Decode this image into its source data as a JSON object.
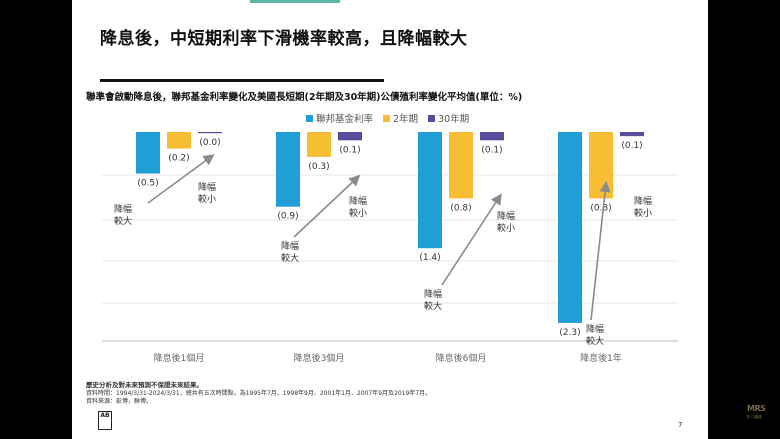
{
  "slide_title": "降息後，中短期利率下滑機率較高，且降幅較大",
  "chart_data": {
    "type": "bar",
    "title": "聯準會啟動降息後，聯邦基金利率變化及美國長短期(2年期及30年期)公債殖利率變化平均值(單位：%)",
    "categories": [
      "降息後1個月",
      "降息後3個月",
      "降息後6個月",
      "降息後1年"
    ],
    "series": [
      {
        "name": "聯邦基金利率",
        "color": "#1f9fd6",
        "values": [
          -0.5,
          -0.9,
          -1.4,
          -2.3
        ],
        "labels": [
          "(0.5)",
          "(0.9)",
          "(1.4)",
          "(2.3)"
        ]
      },
      {
        "name": "2年期",
        "color": "#f7bd33",
        "values": [
          -0.2,
          -0.3,
          -0.8,
          -0.8
        ],
        "labels": [
          "(0.2)",
          "(0.3)",
          "(0.8)",
          "(0.8)"
        ]
      },
      {
        "name": "30年期",
        "color": "#5a4c9c",
        "values": [
          -0.01,
          -0.1,
          -0.1,
          -0.05
        ],
        "labels": [
          "(0.0)",
          "(0.1)",
          "(0.1)",
          "(0.1)"
        ]
      }
    ],
    "ylim": [
      -2.5,
      0
    ],
    "grid": true,
    "legend_position": "top",
    "annotations": {
      "big_drop": [
        "降幅",
        "較大"
      ],
      "small_drop": [
        "降幅",
        "較小"
      ]
    }
  },
  "footnotes": {
    "disclaimer": "歷史分析及對未來預測不保證未來結果。",
    "period": "資料時間：1994/3/31-2024/3/31，總共有五次時間點，為1995年7月、1998年9月、2001年1月、2007年9月及2019年7月。",
    "source": "資料來源：彭博，聯博。"
  },
  "logo_text": "AB",
  "page_number": "7",
  "watermark": "MRS",
  "watermark_sub": "名人講座"
}
